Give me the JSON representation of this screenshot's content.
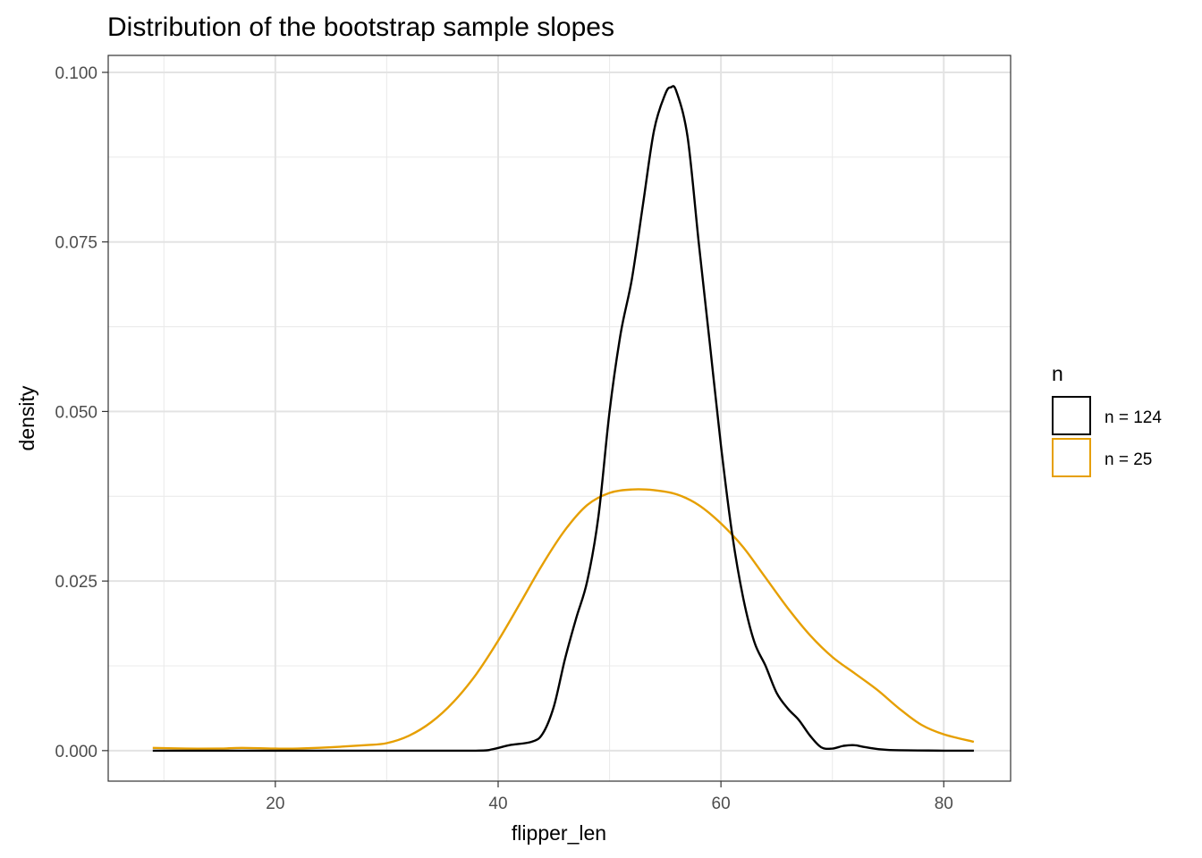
{
  "chart_data": {
    "type": "area",
    "title": "Distribution of the bootstrap sample slopes",
    "xlabel": "flipper_len",
    "ylabel": "density",
    "xlim": [
      5,
      86
    ],
    "ylim": [
      -0.0045,
      0.1025
    ],
    "x_ticks": [
      20,
      40,
      60,
      80
    ],
    "x_tick_labels": [
      "20",
      "40",
      "60",
      "80"
    ],
    "y_ticks": [
      0.0,
      0.025,
      0.05,
      0.075,
      0.1
    ],
    "y_tick_labels": [
      "0.000",
      "0.025",
      "0.050",
      "0.075",
      "0.100"
    ],
    "grid": true,
    "legend": {
      "title": "n",
      "position": "right",
      "entries": [
        "n = 124",
        "n = 25"
      ]
    },
    "series": [
      {
        "name": "n = 124",
        "color": "#000000",
        "points": [
          [
            9,
            0.0
          ],
          [
            20,
            0.0
          ],
          [
            30,
            0.0
          ],
          [
            38,
            0.0
          ],
          [
            39.5,
            0.0002
          ],
          [
            41,
            0.0008
          ],
          [
            43,
            0.0013
          ],
          [
            44,
            0.0025
          ],
          [
            45,
            0.0065
          ],
          [
            46,
            0.0135
          ],
          [
            47,
            0.0195
          ],
          [
            48,
            0.025
          ],
          [
            49,
            0.0345
          ],
          [
            50,
            0.05
          ],
          [
            51,
            0.0615
          ],
          [
            52,
            0.0695
          ],
          [
            53,
            0.0805
          ],
          [
            54,
            0.0915
          ],
          [
            55,
            0.0968
          ],
          [
            55.5,
            0.0978
          ],
          [
            56,
            0.0972
          ],
          [
            57,
            0.0905
          ],
          [
            58,
            0.075
          ],
          [
            59,
            0.06
          ],
          [
            60,
            0.045
          ],
          [
            61,
            0.032
          ],
          [
            62,
            0.0225
          ],
          [
            63,
            0.016
          ],
          [
            64,
            0.0125
          ],
          [
            65,
            0.0085
          ],
          [
            66,
            0.0062
          ],
          [
            67,
            0.0045
          ],
          [
            68,
            0.0022
          ],
          [
            69,
            0.0005
          ],
          [
            70,
            0.0003
          ],
          [
            71,
            0.0007
          ],
          [
            72,
            0.0008
          ],
          [
            73,
            0.0005
          ],
          [
            75,
            0.0001
          ],
          [
            80,
            0.0
          ],
          [
            82.7,
            0.0
          ]
        ]
      },
      {
        "name": "n = 25",
        "color": "#E69F00",
        "points": [
          [
            9,
            0.0004
          ],
          [
            12,
            0.0003
          ],
          [
            15,
            0.0003
          ],
          [
            17,
            0.0004
          ],
          [
            20,
            0.0003
          ],
          [
            22,
            0.0003
          ],
          [
            25,
            0.0005
          ],
          [
            28,
            0.0008
          ],
          [
            30,
            0.0011
          ],
          [
            32,
            0.0022
          ],
          [
            34,
            0.0042
          ],
          [
            36,
            0.0072
          ],
          [
            38,
            0.0112
          ],
          [
            40,
            0.0162
          ],
          [
            42,
            0.0218
          ],
          [
            44,
            0.0275
          ],
          [
            46,
            0.0325
          ],
          [
            48,
            0.0362
          ],
          [
            50,
            0.038
          ],
          [
            52,
            0.0385
          ],
          [
            54,
            0.0384
          ],
          [
            56,
            0.0378
          ],
          [
            58,
            0.0362
          ],
          [
            60,
            0.0335
          ],
          [
            62,
            0.03
          ],
          [
            64,
            0.0255
          ],
          [
            66,
            0.021
          ],
          [
            68,
            0.017
          ],
          [
            70,
            0.0138
          ],
          [
            72,
            0.0114
          ],
          [
            74,
            0.009
          ],
          [
            76,
            0.0062
          ],
          [
            78,
            0.0038
          ],
          [
            80,
            0.0024
          ],
          [
            82.7,
            0.0013
          ]
        ]
      }
    ]
  }
}
